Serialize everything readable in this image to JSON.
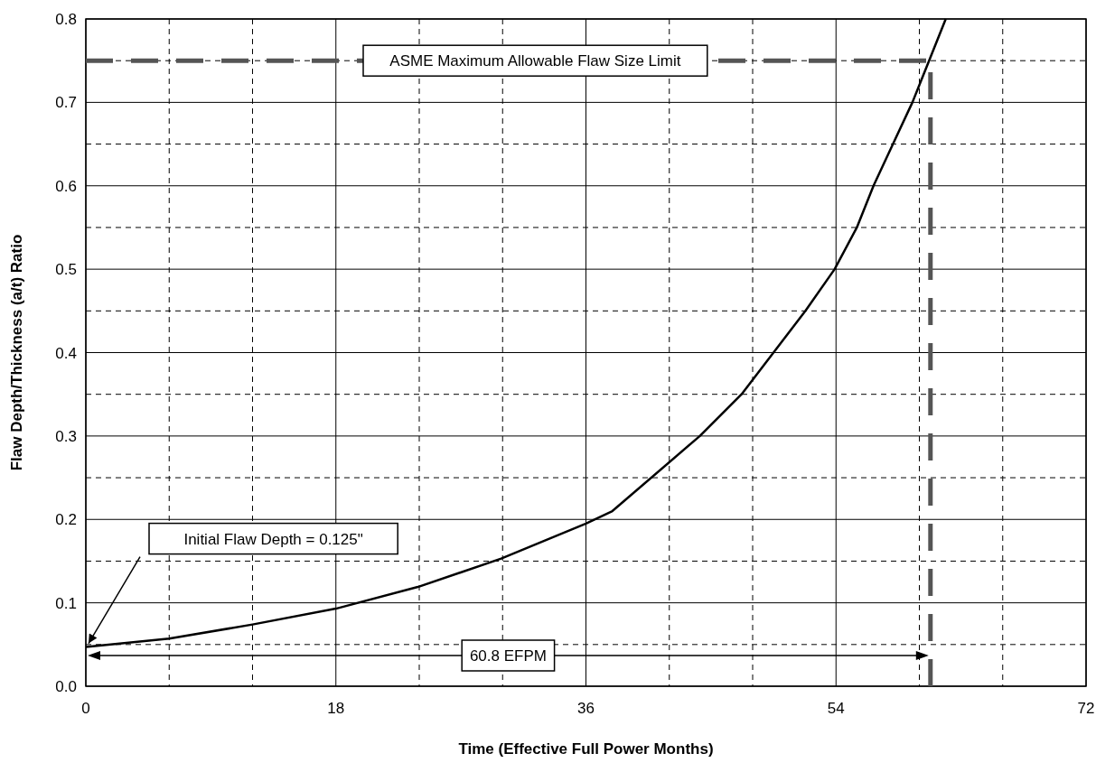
{
  "chart_data": {
    "type": "line",
    "xlabel": "Time (Effective Full Power Months)",
    "ylabel": "Flaw Depth/Thickness (a/t) Ratio",
    "xlim": [
      0,
      72
    ],
    "ylim": [
      0,
      0.8
    ],
    "xticks": [
      0,
      {
        "value": 6,
        "label": null
      },
      {
        "value": 12,
        "label": null
      },
      18,
      {
        "value": 24,
        "label": null
      },
      {
        "value": 30,
        "label": null
      },
      36,
      {
        "value": 42,
        "label": null
      },
      {
        "value": 48,
        "label": null
      },
      54,
      {
        "value": 60,
        "label": null
      },
      {
        "value": 66,
        "label": null
      },
      72
    ],
    "yticks": [
      {
        "value": 0,
        "label": "0.0"
      },
      {
        "value": 0.05,
        "label": null
      },
      0.1,
      {
        "value": 0.15,
        "label": null
      },
      0.2,
      {
        "value": 0.25,
        "label": null
      },
      0.3,
      {
        "value": 0.35,
        "label": null
      },
      0.4,
      {
        "value": 0.45,
        "label": null
      },
      0.5,
      {
        "value": 0.55,
        "label": null
      },
      0.6,
      {
        "value": 0.65,
        "label": null
      },
      0.7,
      {
        "value": 0.75,
        "label": null
      },
      0.8
    ],
    "grid": true,
    "marker": "none",
    "line_style": "solid",
    "series": [
      {
        "color": "#000000",
        "x": [
          0,
          6,
          12,
          18,
          23.9,
          29.9,
          36,
          37.9,
          44.2,
          47.2,
          49.5,
          51.8,
          53.9,
          55.5,
          56.7,
          58.1,
          59.5,
          60.7,
          61.9
        ],
        "values": [
          0.047,
          0.057,
          0.074,
          0.093,
          0.119,
          0.153,
          0.195,
          0.21,
          0.3,
          0.35,
          0.4,
          0.45,
          0.5,
          0.55,
          0.6,
          0.65,
          0.7,
          0.75,
          0.8
        ]
      }
    ],
    "ref_lines": [
      {
        "axis": "y",
        "value": 0.75,
        "label": "ASME Maximum Allowable Flaw Size Limit",
        "color": "#555555",
        "line_style": "dashed"
      },
      {
        "axis": "x",
        "value": 60.8,
        "color": "#555555",
        "line_style": "dashed"
      }
    ],
    "annotations": [
      "Initial Flaw Depth = 0.125\"",
      "60.8 EFPM"
    ]
  }
}
